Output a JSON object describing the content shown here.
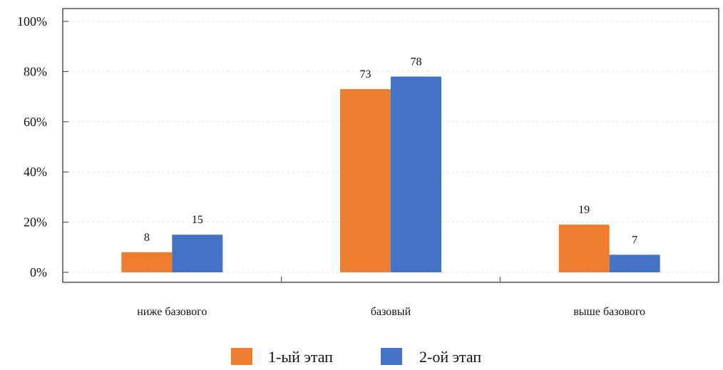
{
  "chart_data": {
    "type": "bar",
    "categories": [
      "ниже базового",
      "базовый",
      "выше базового"
    ],
    "series": [
      {
        "name": "1-ый этап",
        "values": [
          8,
          73,
          19
        ],
        "color": "#ED7D31"
      },
      {
        "name": "2-ой этап",
        "values": [
          15,
          78,
          7
        ],
        "color": "#4472C4"
      }
    ],
    "yticks": [
      "0%",
      "20%",
      "40%",
      "60%",
      "80%",
      "100%"
    ],
    "ylim": [
      0,
      100
    ],
    "grid": true,
    "legend": "bottom"
  }
}
